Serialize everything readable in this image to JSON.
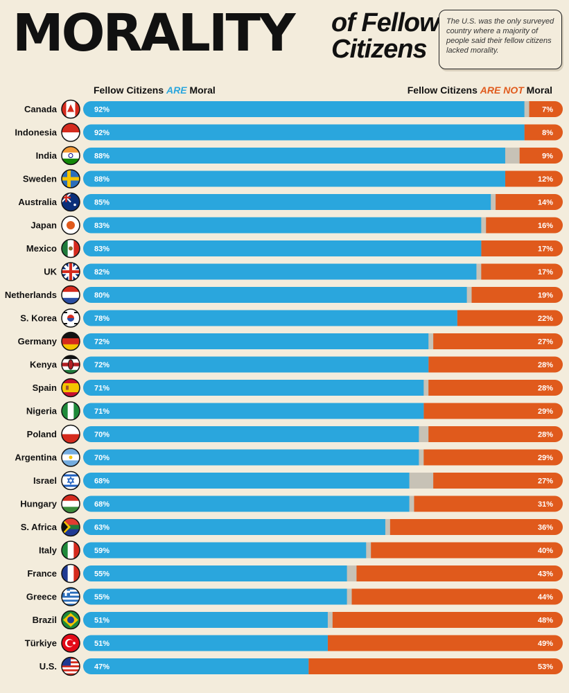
{
  "header": {
    "title_main": "MORALITY",
    "title_sub_line1": "of Fellow",
    "title_sub_line2": "Citizens",
    "callout": "The U.S. was the only surveyed country where a majority of people said their fellow citizens lacked morality."
  },
  "legend": {
    "left_prefix": "Fellow Citizens ",
    "left_highlight": "ARE",
    "left_suffix": " Moral",
    "right_prefix": "Fellow Citizens ",
    "right_highlight": "ARE NOT",
    "right_suffix": " Moral"
  },
  "colors": {
    "moral": "#2aa6dd",
    "not_moral": "#e05a1c",
    "neutral": "#c7c2b6",
    "background": "#f3ecdc"
  },
  "chart_data": {
    "type": "bar",
    "orientation": "horizontal-stacked",
    "title": "Morality of Fellow Citizens",
    "series": [
      {
        "name": "Fellow Citizens ARE Moral",
        "values": [
          92,
          92,
          88,
          88,
          85,
          83,
          83,
          82,
          80,
          78,
          72,
          72,
          71,
          71,
          70,
          70,
          68,
          68,
          63,
          59,
          55,
          55,
          51,
          51,
          47
        ]
      },
      {
        "name": "Fellow Citizens ARE NOT Moral",
        "values": [
          7,
          8,
          9,
          12,
          14,
          16,
          17,
          17,
          19,
          22,
          27,
          28,
          28,
          29,
          28,
          29,
          27,
          31,
          36,
          40,
          43,
          44,
          48,
          49,
          53
        ]
      }
    ],
    "categories": [
      "Canada",
      "Indonesia",
      "India",
      "Sweden",
      "Australia",
      "Japan",
      "Mexico",
      "UK",
      "Netherlands",
      "S. Korea",
      "Germany",
      "Kenya",
      "Spain",
      "Nigeria",
      "Poland",
      "Argentina",
      "Israel",
      "Hungary",
      "S. Africa",
      "Italy",
      "France",
      "Greece",
      "Brazil",
      "Türkiye",
      "U.S."
    ],
    "value_suffix": "%",
    "xlim": [
      0,
      100
    ]
  }
}
